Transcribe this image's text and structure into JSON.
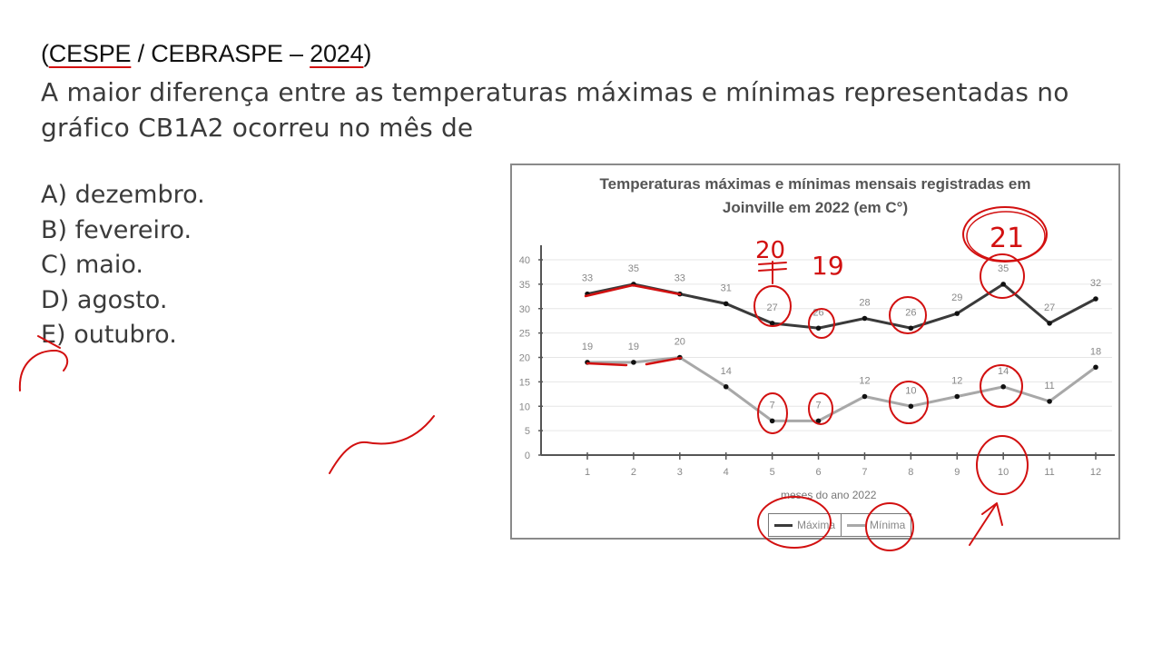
{
  "header": {
    "source_prefix": "(",
    "source_org1": "CESPE",
    "source_sep": " / CEBRASPE – ",
    "source_year": "2024",
    "source_suffix": ")"
  },
  "question": {
    "text": "A maior diferença entre as temperaturas máximas e mínimas representadas no gráfico CB1A2 ocorreu no mês de"
  },
  "options": [
    {
      "letter": "A)",
      "label": "dezembro."
    },
    {
      "letter": "B)",
      "label": "fevereiro."
    },
    {
      "letter": "C)",
      "label": "maio."
    },
    {
      "letter": "D)",
      "label": "agosto."
    },
    {
      "letter": "E)",
      "label": "outubro."
    }
  ],
  "annotations": {
    "note_month5": "20",
    "note_month6": "19",
    "note_month10": "21",
    "ink_color": "#d21010"
  },
  "chart_data": {
    "type": "line",
    "title": "Temperaturas máximas e mínimas mensais registradas em Joinville em 2022 (em C°)",
    "title_line1": "Temperaturas máximas e mínimas mensais registradas em",
    "title_line2": "Joinville em 2022 (em C°)",
    "xlabel": "meses do ano 2022",
    "ylabel": "",
    "x": [
      1,
      2,
      3,
      4,
      5,
      6,
      7,
      8,
      9,
      10,
      11,
      12
    ],
    "yticks": [
      0,
      5,
      10,
      15,
      20,
      25,
      30,
      35,
      40
    ],
    "ylim": [
      0,
      40
    ],
    "grid": true,
    "legend_position": "bottom",
    "series": [
      {
        "name": "Máxima",
        "color": "#3a3a3a",
        "values": [
          33,
          35,
          33,
          31,
          27,
          26,
          28,
          26,
          29,
          35,
          27,
          32
        ]
      },
      {
        "name": "Mínima",
        "color": "#a8a8a8",
        "values": [
          19,
          19,
          20,
          14,
          7,
          7,
          12,
          10,
          12,
          14,
          11,
          18
        ]
      }
    ]
  }
}
